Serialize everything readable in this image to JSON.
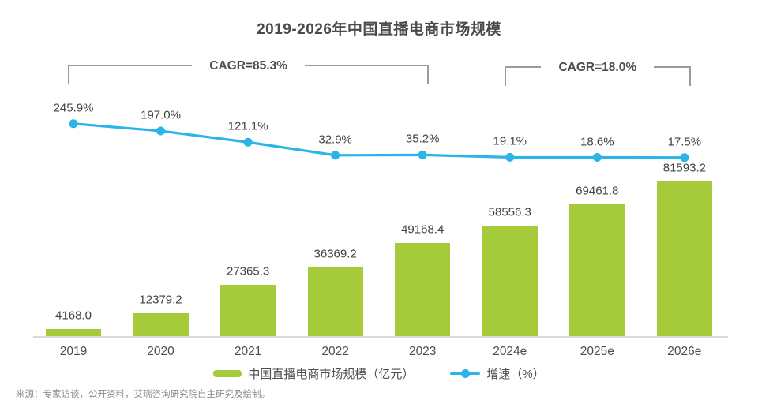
{
  "title": "2019-2026年中国直播电商市场规模",
  "chart_data": {
    "type": "bar+line",
    "categories": [
      "2019",
      "2020",
      "2021",
      "2022",
      "2023",
      "2024e",
      "2025e",
      "2026e"
    ],
    "series": [
      {
        "name": "中国直播电商市场规模（亿元）",
        "type": "bar",
        "color": "#a5cb3a",
        "values": [
          4168.0,
          12379.2,
          27365.3,
          36369.2,
          49168.4,
          58556.3,
          69461.8,
          81593.2
        ],
        "labels": [
          "4168.0",
          "12379.2",
          "27365.3",
          "36369.2",
          "49168.4",
          "58556.3",
          "69461.8",
          "81593.2"
        ]
      },
      {
        "name": "增速（%）",
        "type": "line",
        "color": "#2ab4e8",
        "values": [
          245.9,
          197.0,
          121.1,
          32.9,
          35.2,
          19.1,
          18.6,
          17.5
        ],
        "labels": [
          "245.9%",
          "197.0%",
          "121.1%",
          "32.9%",
          "35.2%",
          "19.1%",
          "18.6%",
          "17.5%"
        ]
      }
    ],
    "annotations": [
      {
        "label": "CAGR=85.3%",
        "from": "2019",
        "to": "2023"
      },
      {
        "label": "CAGR=18.0%",
        "from": "2024e",
        "to": "2026e"
      }
    ],
    "unit": "亿元",
    "grid": false,
    "y_axis_visible": false,
    "legend_position": "bottom"
  },
  "legend": {
    "bar_label": "中国直播电商市场规模（亿元）",
    "line_label": "增速（%）"
  },
  "source": "来源：专家访谈，公开资料，艾瑞咨询研究院自主研究及绘制。",
  "colors": {
    "bar": "#a5cb3a",
    "line": "#2ab4e8",
    "text": "#424242",
    "bracket": "#9b9b9b",
    "axis": "#d9d9d9",
    "source_text": "#8c8c8c"
  }
}
